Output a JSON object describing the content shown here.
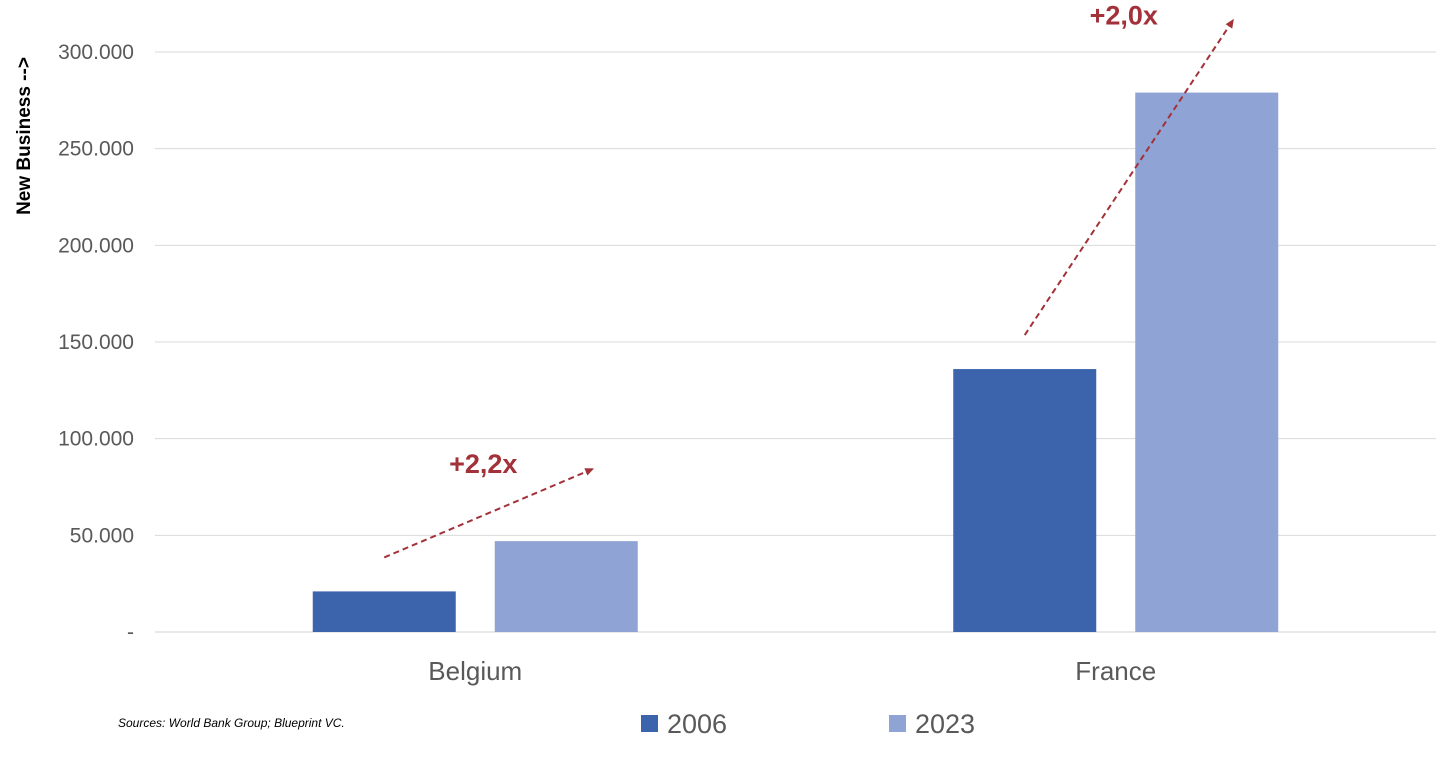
{
  "chart_data": {
    "type": "bar",
    "title": "",
    "ylabel": "New Business -->",
    "xlabel": "",
    "categories": [
      "Belgium",
      "France"
    ],
    "series": [
      {
        "name": "2006",
        "values": [
          21000,
          136000
        ],
        "color": "#3c64ad"
      },
      {
        "name": "2023",
        "values": [
          47000,
          279000
        ],
        "color": "#8fa3d4"
      }
    ],
    "ylim": [
      0,
      300000
    ],
    "yticks": [
      {
        "value": 0,
        "label": "-"
      },
      {
        "value": 50000,
        "label": "50.000"
      },
      {
        "value": 100000,
        "label": "100.000"
      },
      {
        "value": 150000,
        "label": "150.000"
      },
      {
        "value": 200000,
        "label": "200.000"
      },
      {
        "value": 250000,
        "label": "250.000"
      },
      {
        "value": 300000,
        "label": "300.000"
      }
    ],
    "grid": true,
    "legend_position": "bottom",
    "annotations": [
      {
        "category": "Belgium",
        "text": "+2,2x",
        "color": "#a3313a"
      },
      {
        "category": "France",
        "text": "+2,0x",
        "color": "#a3313a"
      }
    ],
    "source_note": "Sources: World Bank Group; Blueprint VC."
  }
}
